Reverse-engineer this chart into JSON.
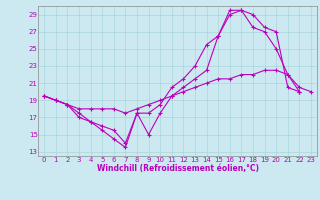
{
  "xlabel": "Windchill (Refroidissement éolien,°C)",
  "xlim": [
    -0.5,
    23.5
  ],
  "ylim": [
    12.5,
    30.0
  ],
  "yticks": [
    13,
    15,
    17,
    19,
    21,
    23,
    25,
    27,
    29
  ],
  "xticks": [
    0,
    1,
    2,
    3,
    4,
    5,
    6,
    7,
    8,
    9,
    10,
    11,
    12,
    13,
    14,
    15,
    16,
    17,
    18,
    19,
    20,
    21,
    22,
    23
  ],
  "line_color": "#bb00bb",
  "bg_color": "#cce8f0",
  "grid_color": "#aad4dd",
  "line1_x": [
    0,
    1,
    2,
    3,
    4,
    5,
    6,
    7,
    8,
    9,
    10,
    11,
    12,
    13,
    14,
    15,
    16,
    17,
    18,
    19,
    20,
    21,
    22
  ],
  "line1_y": [
    19.5,
    19.0,
    18.5,
    17.0,
    16.5,
    15.5,
    14.5,
    13.5,
    17.5,
    17.5,
    18.5,
    20.5,
    21.5,
    23.0,
    25.5,
    26.5,
    29.0,
    29.5,
    27.5,
    27.0,
    25.0,
    22.0,
    20.0
  ],
  "line2_x": [
    0,
    1,
    2,
    3,
    4,
    5,
    6,
    7,
    8,
    9,
    10,
    11,
    12,
    13,
    14,
    15,
    16,
    17,
    18,
    19,
    20,
    21,
    22
  ],
  "line2_y": [
    19.5,
    19.0,
    18.5,
    17.5,
    16.5,
    16.0,
    15.5,
    14.0,
    17.5,
    15.0,
    17.5,
    19.5,
    20.5,
    21.5,
    22.5,
    26.5,
    29.5,
    29.5,
    29.0,
    27.5,
    27.0,
    20.5,
    20.0
  ],
  "line3_x": [
    0,
    1,
    2,
    3,
    4,
    5,
    6,
    7,
    8,
    9,
    10,
    11,
    12,
    13,
    14,
    15,
    16,
    17,
    18,
    19,
    20,
    21,
    22,
    23
  ],
  "line3_y": [
    19.5,
    19.0,
    18.5,
    18.0,
    18.0,
    18.0,
    18.0,
    17.5,
    18.0,
    18.5,
    19.0,
    19.5,
    20.0,
    20.5,
    21.0,
    21.5,
    21.5,
    22.0,
    22.0,
    22.5,
    22.5,
    22.0,
    20.5,
    20.0
  ],
  "tick_fontsize": 5.0,
  "xlabel_fontsize": 5.5,
  "marker_size": 3.0,
  "line_width": 0.8
}
